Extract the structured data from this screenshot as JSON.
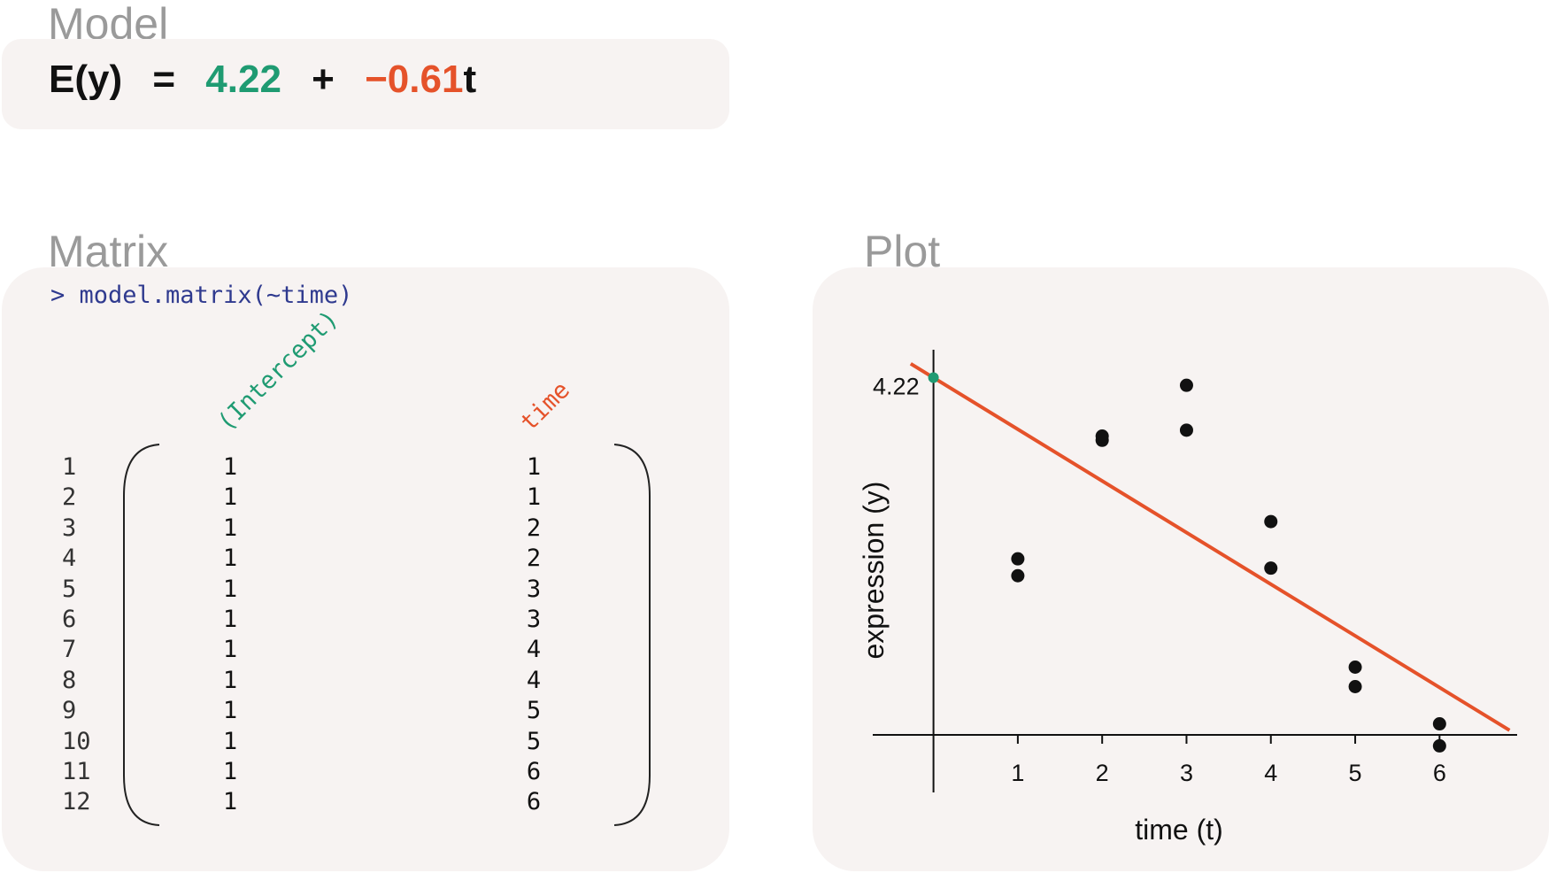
{
  "model": {
    "title": "Model",
    "equation": {
      "lhs": "E(y)",
      "equals": "=",
      "intercept": "4.22",
      "plus": "+",
      "slope": "−0.61",
      "variable": "t"
    }
  },
  "matrix": {
    "title": "Matrix",
    "command": "> model.matrix(~time)",
    "columns": [
      "(Intercept)",
      "time"
    ],
    "row_labels": [
      "1",
      "2",
      "3",
      "4",
      "5",
      "6",
      "7",
      "8",
      "9",
      "10",
      "11",
      "12"
    ],
    "intercept_values": [
      "1",
      "1",
      "1",
      "1",
      "1",
      "1",
      "1",
      "1",
      "1",
      "1",
      "1",
      "1"
    ],
    "time_values": [
      "1",
      "1",
      "2",
      "2",
      "3",
      "3",
      "4",
      "4",
      "5",
      "5",
      "6",
      "6"
    ]
  },
  "plot": {
    "title": "Plot",
    "chart_data": {
      "type": "scatter",
      "xlabel": "time (t)",
      "ylabel": "expression (y)",
      "x_ticks": [
        "1",
        "2",
        "3",
        "4",
        "5",
        "6"
      ],
      "y_tick_label": "4.22",
      "points": [
        {
          "x": 1,
          "y": 2.08
        },
        {
          "x": 1,
          "y": 1.88
        },
        {
          "x": 2,
          "y": 3.48
        },
        {
          "x": 2,
          "y": 3.53
        },
        {
          "x": 3,
          "y": 4.13
        },
        {
          "x": 3,
          "y": 3.6
        },
        {
          "x": 4,
          "y": 2.52
        },
        {
          "x": 4,
          "y": 1.97
        },
        {
          "x": 5,
          "y": 0.8
        },
        {
          "x": 5,
          "y": 0.57
        },
        {
          "x": 6,
          "y": 0.13
        },
        {
          "x": 6,
          "y": -0.13
        }
      ],
      "fit": {
        "intercept": 4.22,
        "slope": -0.61
      },
      "xlim": [
        -0.72,
        6.92
      ],
      "ylim": [
        -0.68,
        4.55
      ]
    }
  },
  "colors": {
    "intercept": "#1f9b72",
    "slope": "#e5522a",
    "command": "#2f3a8f",
    "panel": "#f7f3f2",
    "title": "#9a9a9a"
  }
}
